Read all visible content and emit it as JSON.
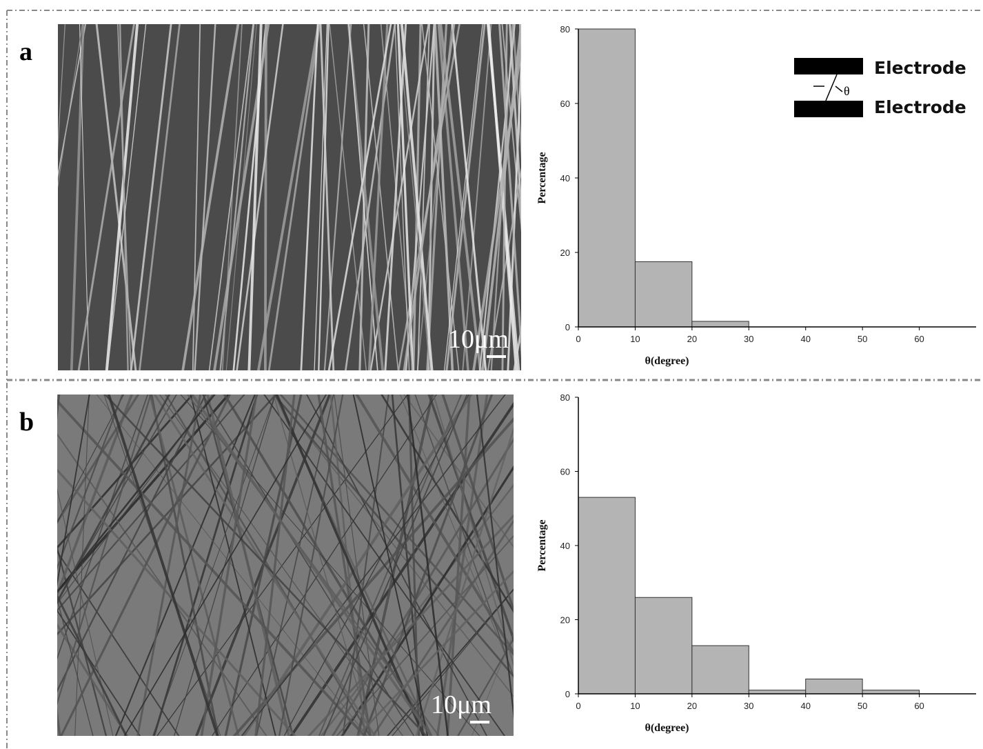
{
  "chart_data": [
    {
      "type": "histogram",
      "panel_label": "a",
      "scale_bar_label": "10μm",
      "xlabel": "θ(degree)",
      "ylabel": "Percentage",
      "bins": [
        0,
        10,
        20,
        30
      ],
      "values": [
        80,
        17.5,
        1.5
      ],
      "color": "#b4b4b4",
      "xlim": [
        0,
        70
      ],
      "ylim": [
        0,
        80
      ],
      "xticks": [
        0,
        10,
        20,
        30,
        40,
        50,
        60
      ],
      "yticks": [
        0,
        20,
        40,
        60,
        80
      ],
      "inset_labels": [
        "Electrode",
        "Electrode"
      ],
      "inset_symbol": "θ"
    },
    {
      "type": "histogram",
      "panel_label": "b",
      "scale_bar_label": "10μm",
      "xlabel": "θ(degree)",
      "ylabel": "Percentage",
      "bins": [
        0,
        10,
        20,
        30,
        40,
        50,
        60
      ],
      "values": [
        53,
        26,
        13,
        1,
        4,
        1
      ],
      "color": "#b4b4b4",
      "xlim": [
        0,
        70
      ],
      "ylim": [
        0,
        80
      ],
      "xticks": [
        0,
        10,
        20,
        30,
        40,
        50,
        60
      ],
      "yticks": [
        0,
        20,
        40,
        60,
        80
      ]
    }
  ]
}
